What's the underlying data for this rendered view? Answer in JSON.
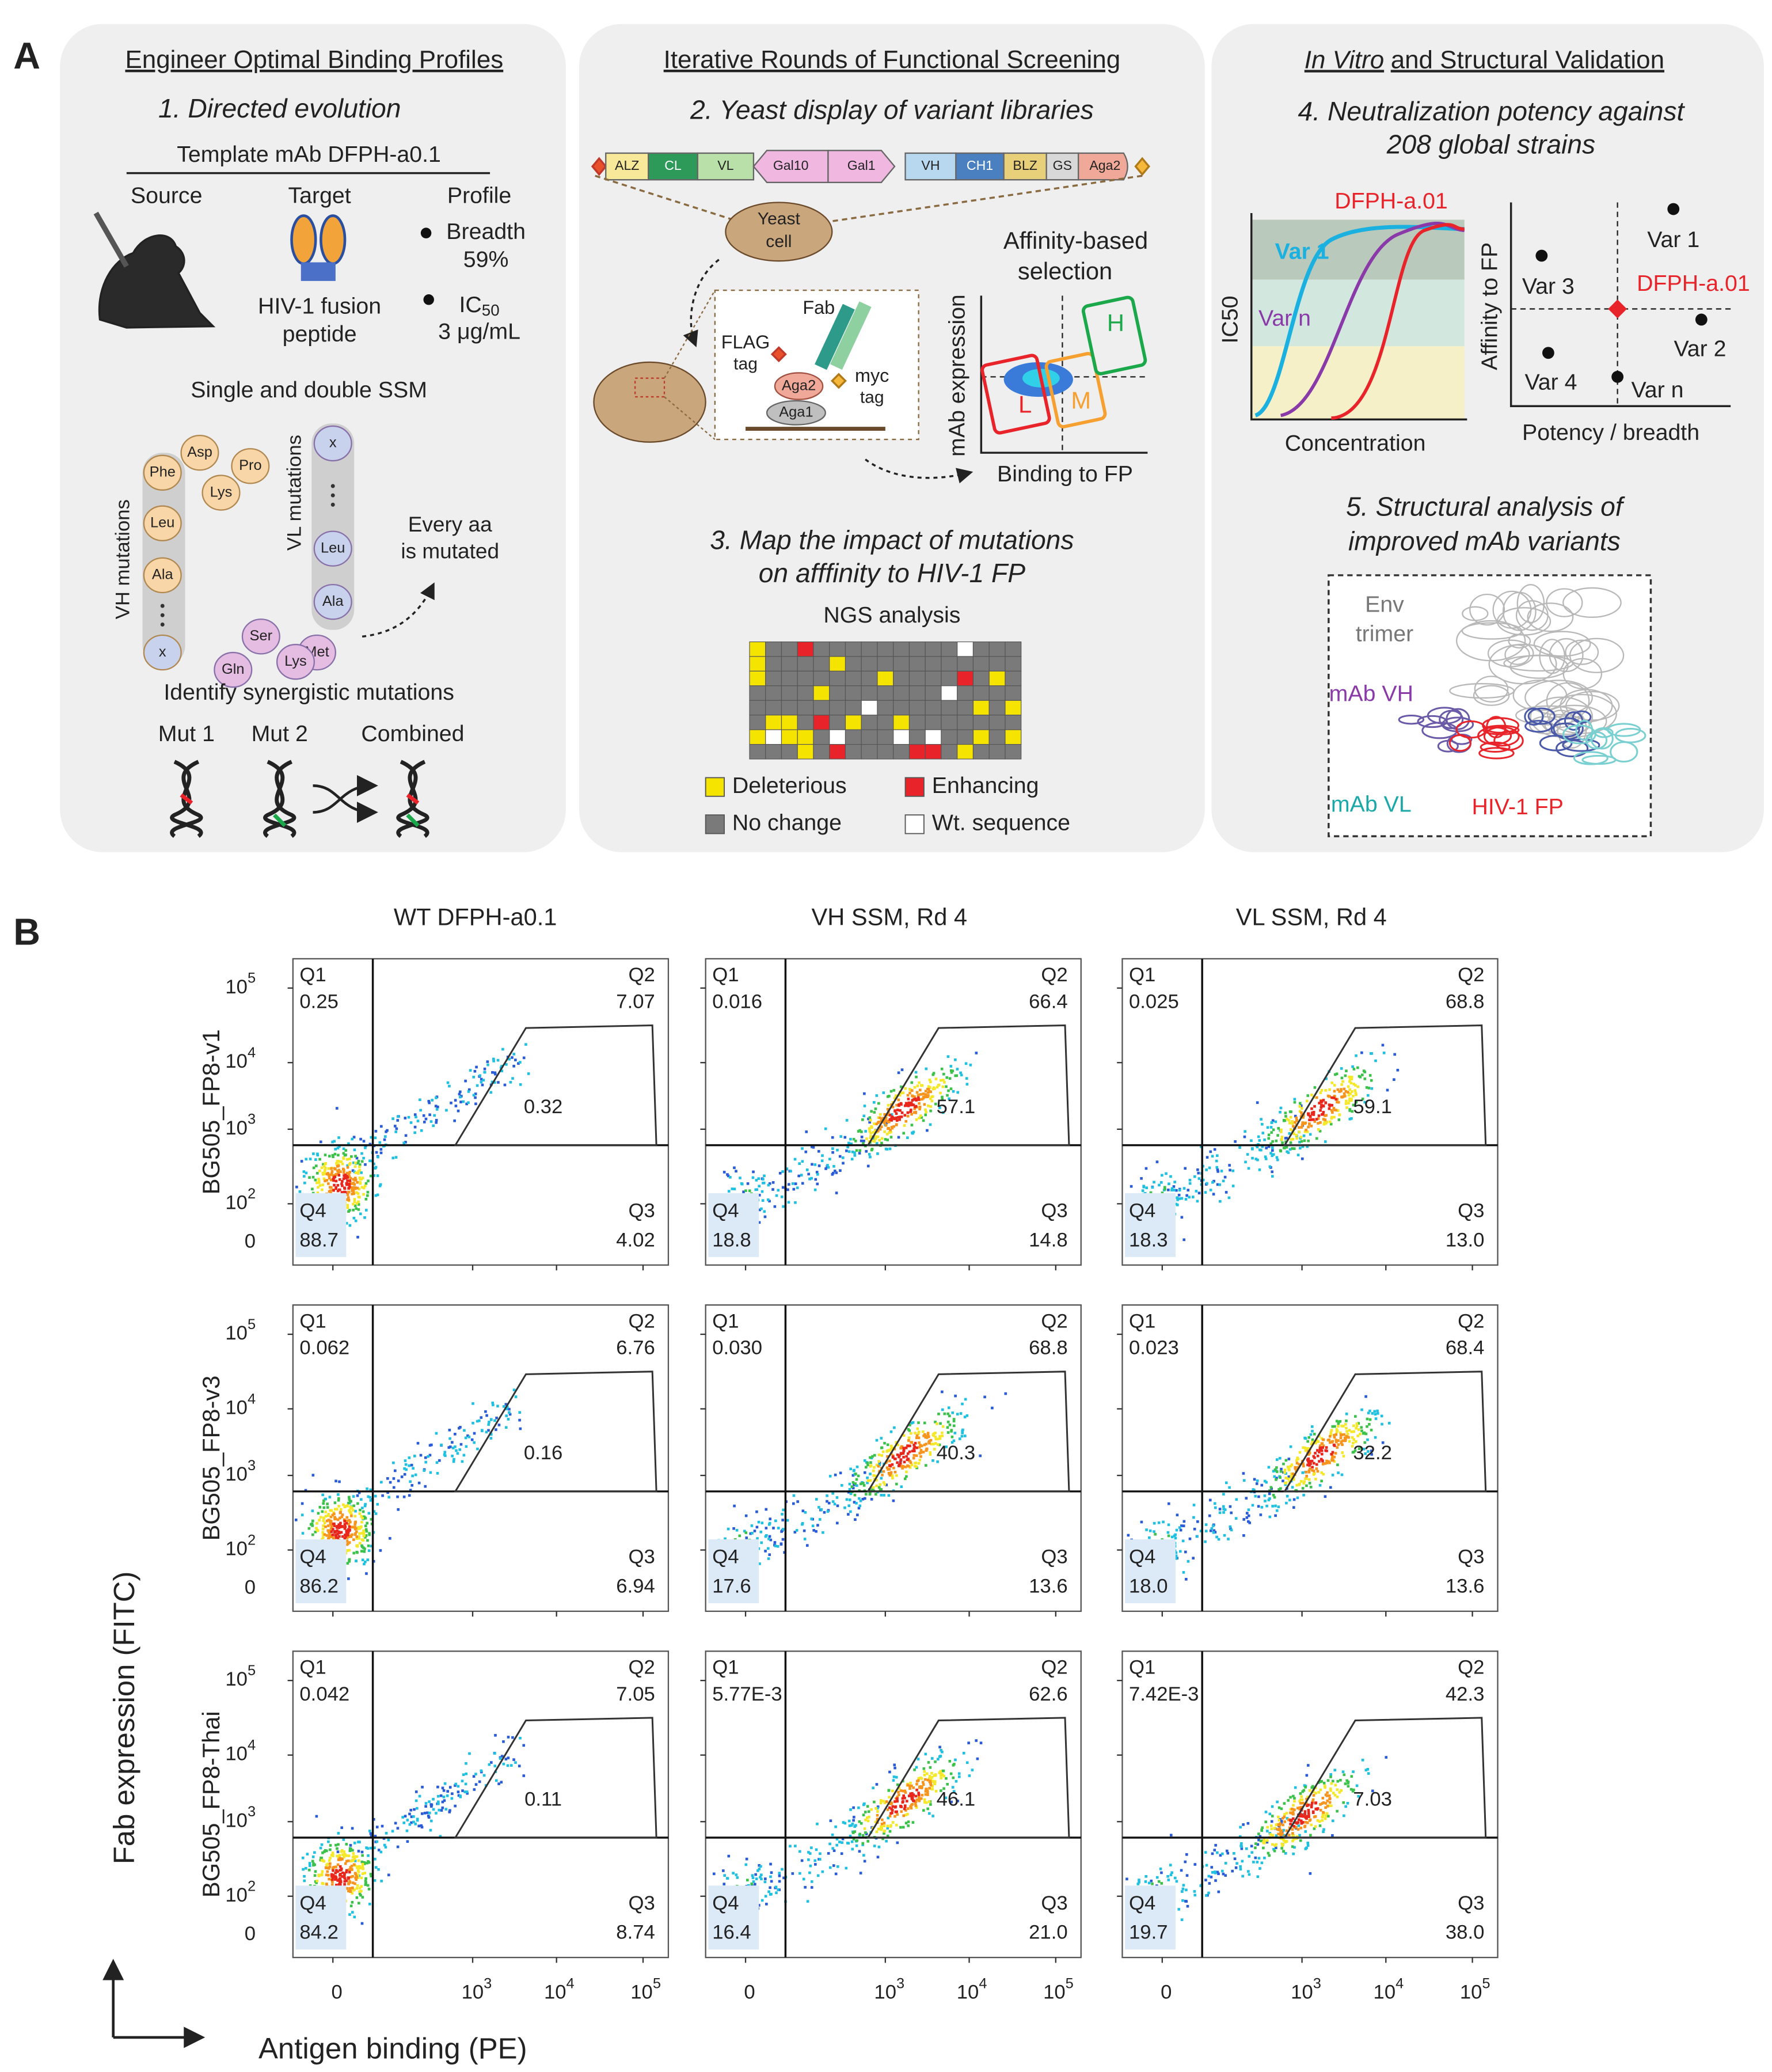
{
  "panel_a": {
    "label": "A",
    "box1": {
      "title": "Engineer Optimal Binding Profiles",
      "step": "1. Directed evolution",
      "template": "Template mAb DFPH-a0.1",
      "source": "Source",
      "target": "Target",
      "profile": "Profile",
      "target_name": [
        "HIV-1 fusion",
        "peptide"
      ],
      "breadth": [
        "Breadth",
        "59%"
      ],
      "ic50": {
        "base": "IC",
        "sub": "50",
        "value": "3 μg/mL"
      },
      "ssm": "Single and double SSM",
      "vh_label": "VH  mutations",
      "vl_label": "VL mutations",
      "vh_beads": [
        "Phe",
        "Asp",
        "Pro",
        "Lys",
        "Leu",
        "Ala",
        "x"
      ],
      "vl_beads": [
        "x",
        "Leu",
        "Ala",
        "Met",
        "Lys",
        "Ser",
        "Gln"
      ],
      "every_aa": [
        "Every aa",
        "is mutated"
      ],
      "synergy": "Identify synergistic mutations",
      "mutations": [
        "Mut 1",
        "Mut 2",
        "Combined"
      ]
    },
    "box2": {
      "title": "Iterative Rounds of Functional Screening",
      "step2": "2. Yeast display of variant libraries",
      "construct": [
        "ALZ",
        "CL",
        "VL",
        "Gal10",
        "Gal1",
        "VH",
        "CH1",
        "BLZ",
        "GS",
        "Aga2"
      ],
      "yeast": [
        "Yeast",
        "cell"
      ],
      "fab": "Fab",
      "flag": [
        "FLAG",
        "tag"
      ],
      "myc": [
        "myc",
        "tag"
      ],
      "aga2": "Aga2",
      "aga1": "Aga1",
      "selection": [
        "Affinity-based",
        "selection"
      ],
      "y_label": "mAb expression",
      "x_label": "Binding to FP",
      "gates": [
        "H",
        "L",
        "M"
      ],
      "step3": [
        "3. Map the impact of mutations",
        "on afffinity to HIV-1 FP"
      ],
      "ngs": "NGS analysis",
      "legend": [
        {
          "name": "Deleterious",
          "color": "#f5e400"
        },
        {
          "name": "Enhancing",
          "color": "#e8242a"
        },
        {
          "name": "No change",
          "color": "#7a7a7a"
        },
        {
          "name": "Wt. sequence",
          "color": "#ffffff"
        }
      ]
    },
    "box3": {
      "title_italic": "In Vitro",
      "title_rest": "and Structural Validation",
      "step4": [
        "4. Neutralization potency against",
        "208 global strains"
      ],
      "curve_labels": [
        "DFPH-a.01",
        "Var 1",
        "Var n"
      ],
      "curve_y": "IC50",
      "curve_x": "Concentration",
      "scatter_labels": [
        "Var 1",
        "Var 3",
        "DFPH-a.01",
        "Var 2",
        "Var 4",
        "Var n"
      ],
      "scatter_y": "Affinity to FP",
      "scatter_x": "Potency / breadth",
      "step5": [
        "5. Structural analysis of",
        "improved mAb variants"
      ],
      "structure_labels": [
        "Env",
        "trimer",
        "mAb VH",
        "mAb VL",
        "HIV-1 FP"
      ]
    }
  },
  "panel_b": {
    "label": "B",
    "columns": [
      "WT DFPH-a0.1",
      "VH SSM, Rd 4",
      "VL SSM, Rd 4"
    ],
    "quadrant_names": [
      "Q1",
      "Q2",
      "Q3",
      "Q4"
    ],
    "rows": [
      {
        "label": "BG505_FP8-v1",
        "plots": [
          {
            "q1": "0.25",
            "q2": "7.07",
            "q3": "4.02",
            "q4": "88.7",
            "gate": "0.32"
          },
          {
            "q1": "0.016",
            "q2": "66.4",
            "q3": "14.8",
            "q4": "18.8",
            "gate": "57.1"
          },
          {
            "q1": "0.025",
            "q2": "68.8",
            "q3": "13.0",
            "q4": "18.3",
            "gate": "59.1"
          }
        ]
      },
      {
        "label": "BG505_FP8-v3",
        "plots": [
          {
            "q1": "0.062",
            "q2": "6.76",
            "q3": "6.94",
            "q4": "86.2",
            "gate": "0.16"
          },
          {
            "q1": "0.030",
            "q2": "68.8",
            "q3": "13.6",
            "q4": "17.6",
            "gate": "40.3"
          },
          {
            "q1": "0.023",
            "q2": "68.4",
            "q3": "13.6",
            "q4": "18.0",
            "gate": "32.2"
          }
        ]
      },
      {
        "label": "BG505_FP8-Thai",
        "plots": [
          {
            "q1": "0.042",
            "q2": "7.05",
            "q3": "8.74",
            "q4": "84.2",
            "gate": "0.11"
          },
          {
            "q1": "5.77E-3",
            "q2": "62.6",
            "q3": "21.0",
            "q4": "16.4",
            "gate": "46.1"
          },
          {
            "q1": "7.42E-3",
            "q2": "42.3",
            "q3": "38.0",
            "q4": "19.7",
            "gate": "7.03"
          }
        ]
      }
    ],
    "yticks": [
      {
        "base": "10",
        "exp": "5"
      },
      {
        "base": "10",
        "exp": "4"
      },
      {
        "base": "10",
        "exp": "3"
      },
      {
        "base": "10",
        "exp": "2"
      },
      {
        "base": "0"
      }
    ],
    "xticks": [
      {
        "base": "0"
      },
      {
        "base": "10",
        "exp": "3"
      },
      {
        "base": "10",
        "exp": "4"
      },
      {
        "base": "10",
        "exp": "5"
      }
    ],
    "y_axis": "Fab expression (FITC)",
    "x_axis": "Antigen binding (PE)"
  }
}
